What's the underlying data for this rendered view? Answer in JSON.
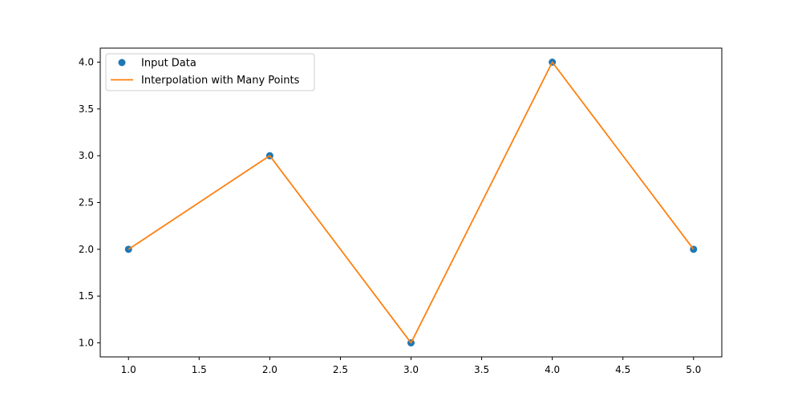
{
  "chart_data": {
    "type": "line",
    "title": "",
    "xlabel": "",
    "ylabel": "",
    "xlim": [
      0.8,
      5.2
    ],
    "ylim": [
      0.85,
      4.15
    ],
    "x_ticks": [
      1.0,
      1.5,
      2.0,
      2.5,
      3.0,
      3.5,
      4.0,
      4.5,
      5.0
    ],
    "y_ticks": [
      1.0,
      1.5,
      2.0,
      2.5,
      3.0,
      3.5,
      4.0
    ],
    "x_tick_labels": [
      "1.0",
      "1.5",
      "2.0",
      "2.5",
      "3.0",
      "3.5",
      "4.0",
      "4.5",
      "5.0"
    ],
    "y_tick_labels": [
      "1.0",
      "1.5",
      "2.0",
      "2.5",
      "3.0",
      "3.5",
      "4.0"
    ],
    "grid": false,
    "legend_position": "top-left",
    "series": [
      {
        "name": "Input Data",
        "kind": "scatter",
        "color": "#1f77b4",
        "x": [
          1,
          2,
          3,
          4,
          5
        ],
        "y": [
          2,
          3,
          1,
          4,
          2
        ]
      },
      {
        "name": "Interpolation with Many Points",
        "kind": "line",
        "color": "#ff7f0e",
        "x": [
          1,
          2,
          3,
          4,
          5
        ],
        "y": [
          2,
          3,
          1,
          4,
          2
        ]
      }
    ]
  }
}
